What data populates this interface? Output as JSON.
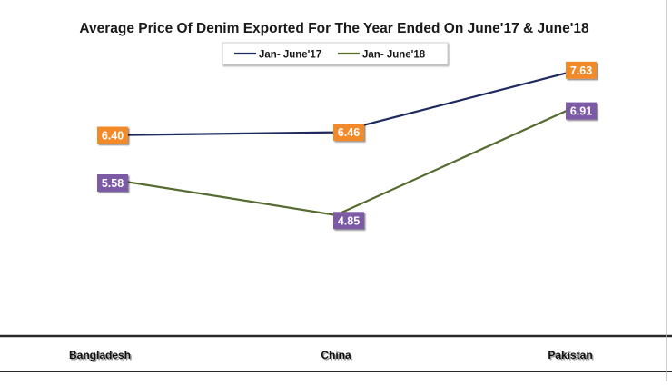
{
  "chart_data": {
    "type": "line",
    "title": "Average Price Of Denim Exported For The Year Ended On June'17 & June'18",
    "categories": [
      "Bangladesh",
      "China",
      "Pakistan"
    ],
    "series": [
      {
        "name": "Jan- June'17",
        "values": [
          6.4,
          6.46,
          7.63
        ],
        "labels": [
          "6.40",
          "6.46",
          "7.63"
        ],
        "line_color": "#1f2a5e",
        "label_bg": "#f28a2b"
      },
      {
        "name": "Jan- June'18",
        "values": [
          5.58,
          4.85,
          6.91
        ],
        "labels": [
          "5.58",
          "4.85",
          "6.91"
        ],
        "line_color": "#556b2f",
        "label_bg": "#7b5aa6"
      }
    ],
    "xlabel": "",
    "ylabel": "",
    "ylim": [
      2.5,
      8.5
    ],
    "grid": false,
    "legend_position": "top"
  }
}
